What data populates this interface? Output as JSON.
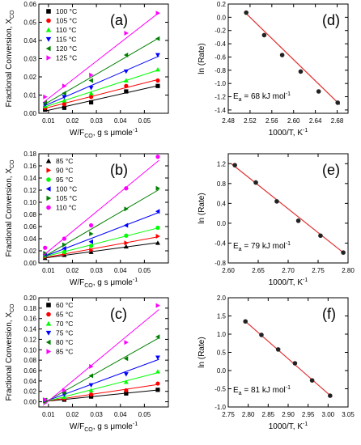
{
  "figure": {
    "colors": {
      "black": "#000000",
      "red": "#ff0000",
      "green": "#00ff00",
      "blue": "#0000ff",
      "darkgreen": "#007f00",
      "magenta": "#ff00ff",
      "fitline": "#e03030",
      "arrhenius_marker": "#222222"
    }
  },
  "chart_data": [
    {
      "id": "a",
      "type": "scatter",
      "panel_label": "(a)",
      "xlabel_main": "W/F",
      "xlabel_sub": "CO",
      "xlabel_tail": ", g s μmole",
      "xlabel_sup": "-1",
      "ylabel_main": "Fractional Conversion, X",
      "ylabel_sub": "CO",
      "xlim": [
        0.006,
        0.06
      ],
      "ylim": [
        0,
        0.06
      ],
      "xticks": [
        0.01,
        0.02,
        0.03,
        0.04,
        0.05
      ],
      "xtick_labels": [
        "0.01",
        "0.02",
        "0.03",
        "0.04",
        "0.05"
      ],
      "yticks": [
        0,
        0.01,
        0.02,
        0.03,
        0.04,
        0.05,
        0.06
      ],
      "ytick_labels": [
        "0.00",
        "0.01",
        "0.02",
        "0.03",
        "0.04",
        "0.05",
        "0.06"
      ],
      "legend_position": "top-left",
      "x": [
        0.0086,
        0.0166,
        0.0278,
        0.0424,
        0.0556
      ],
      "series": [
        {
          "name": "100 °C",
          "marker": "square",
          "color": "#000000",
          "values": [
            0.002,
            0.003,
            0.006,
            0.012,
            0.015
          ]
        },
        {
          "name": "105 °C",
          "marker": "circle",
          "color": "#ff0000",
          "values": [
            0.003,
            0.005,
            0.009,
            0.015,
            0.018
          ]
        },
        {
          "name": "110 °C",
          "marker": "triangle-up",
          "color": "#00ff00",
          "values": [
            0.004,
            0.007,
            0.011,
            0.018,
            0.024
          ]
        },
        {
          "name": "115 °C",
          "marker": "triangle-down",
          "color": "#0000ff",
          "values": [
            0.005,
            0.009,
            0.014,
            0.023,
            0.032
          ]
        },
        {
          "name": "120 °C",
          "marker": "triangle-left",
          "color": "#007f00",
          "values": [
            0.006,
            0.011,
            0.018,
            0.032,
            0.041
          ]
        },
        {
          "name": "125 °C",
          "marker": "triangle-right",
          "color": "#ff00ff",
          "values": [
            0.009,
            0.015,
            0.021,
            0.044,
            0.055
          ]
        }
      ]
    },
    {
      "id": "d",
      "type": "scatter",
      "panel_label": "(d)",
      "xlabel_main": "1000/T, K",
      "xlabel_sup": "-1",
      "ylabel_main": "ln (Rate)",
      "xlim": [
        2.48,
        2.7
      ],
      "ylim": [
        -1.45,
        0.2
      ],
      "xticks": [
        2.48,
        2.52,
        2.56,
        2.6,
        2.64,
        2.68
      ],
      "xtick_labels": [
        "2.48",
        "2.52",
        "2.56",
        "2.60",
        "2.64",
        "2.68"
      ],
      "yticks": [
        -1.4,
        -1.2,
        -1.0,
        -0.8,
        -0.6,
        -0.4,
        -0.2,
        0.0,
        0.2
      ],
      "ytick_labels": [
        "-1.4",
        "-1.2",
        "-1.0",
        "-0.8",
        "-0.6",
        "-0.4",
        "-0.2",
        "0.0",
        "0.2"
      ],
      "annotation": {
        "main": "E",
        "sub": "a",
        "tail": " = 68 kJ mol",
        "sup": "-1"
      },
      "points_x": [
        2.513,
        2.546,
        2.579,
        2.613,
        2.646,
        2.681
      ],
      "points_y": [
        0.07,
        -0.27,
        -0.57,
        -0.82,
        -1.12,
        -1.29
      ],
      "fit": {
        "x": [
          2.51,
          2.685
        ],
        "y": [
          0.08,
          -1.32
        ]
      }
    },
    {
      "id": "b",
      "type": "scatter",
      "panel_label": "(b)",
      "xlabel_main": "W/F",
      "xlabel_sub": "CO",
      "xlabel_tail": ", g s μmole",
      "xlabel_sup": "-1",
      "ylabel_main": "Fractional Conversion, X",
      "ylabel_sub": "CO",
      "xlim": [
        0.006,
        0.06
      ],
      "ylim": [
        0,
        0.18
      ],
      "xticks": [
        0.01,
        0.02,
        0.03,
        0.04,
        0.05
      ],
      "xtick_labels": [
        "0.01",
        "0.02",
        "0.03",
        "0.04",
        "0.05"
      ],
      "yticks": [
        0,
        0.02,
        0.04,
        0.06,
        0.08,
        0.1,
        0.12,
        0.14,
        0.16,
        0.18
      ],
      "ytick_labels": [
        "0.00",
        "0.02",
        "0.04",
        "0.06",
        "0.08",
        "0.10",
        "0.12",
        "0.14",
        "0.16",
        "0.18"
      ],
      "legend_position": "top-left",
      "x": [
        0.0086,
        0.0166,
        0.0278,
        0.0424,
        0.0556
      ],
      "series": [
        {
          "name": "85 °C",
          "marker": "triangle-up",
          "color": "#000000",
          "values": [
            0.008,
            0.013,
            0.018,
            0.027,
            0.033
          ]
        },
        {
          "name": "90 °C",
          "marker": "triangle-right",
          "color": "#ff0000",
          "values": [
            0.01,
            0.015,
            0.021,
            0.033,
            0.044
          ]
        },
        {
          "name": "95 °C",
          "marker": "circle",
          "color": "#00ff00",
          "values": [
            0.012,
            0.018,
            0.028,
            0.045,
            0.058
          ]
        },
        {
          "name": "100 °C",
          "marker": "triangle-left",
          "color": "#0000ff",
          "values": [
            0.014,
            0.024,
            0.035,
            0.062,
            0.085
          ]
        },
        {
          "name": "105 °C",
          "marker": "triangle-right",
          "color": "#007f00",
          "values": [
            0.016,
            0.03,
            0.048,
            0.089,
            0.123
          ]
        },
        {
          "name": "110 °C",
          "marker": "circle",
          "color": "#ff00ff",
          "values": [
            0.025,
            0.04,
            0.062,
            0.123,
            0.175
          ]
        }
      ]
    },
    {
      "id": "e",
      "type": "scatter",
      "panel_label": "(e)",
      "xlabel_main": "1000/T, K",
      "xlabel_sup": "-1",
      "ylabel_main": "ln (Rate)",
      "xlim": [
        2.6,
        2.8
      ],
      "ylim": [
        -0.8,
        1.4
      ],
      "xticks": [
        2.6,
        2.65,
        2.7,
        2.75,
        2.8
      ],
      "xtick_labels": [
        "2.60",
        "2.65",
        "2.70",
        "2.75",
        "2.80"
      ],
      "yticks": [
        -0.8,
        -0.4,
        0.0,
        0.4,
        0.8,
        1.2
      ],
      "ytick_labels": [
        "-0.8",
        "-0.4",
        "0.0",
        "0.4",
        "0.8",
        "1.2"
      ],
      "annotation": {
        "main": "E",
        "sub": "a",
        "tail": " = 79 kJ mol",
        "sup": "-1"
      },
      "points_x": [
        2.611,
        2.646,
        2.681,
        2.717,
        2.754,
        2.792
      ],
      "points_y": [
        1.17,
        0.82,
        0.44,
        0.05,
        -0.25,
        -0.59
      ],
      "fit": {
        "x": [
          2.605,
          2.795
        ],
        "y": [
          1.2,
          -0.62
        ]
      }
    },
    {
      "id": "c",
      "type": "scatter",
      "panel_label": "(c)",
      "xlabel_main": "W/F",
      "xlabel_sub": "CO",
      "xlabel_tail": ", g s μmole",
      "xlabel_sup": "-1",
      "ylabel_main": "Fractional Conversion, X",
      "ylabel_sub": "CO",
      "xlim": [
        0.006,
        0.06
      ],
      "ylim": [
        -0.01,
        0.2
      ],
      "xticks": [
        0.01,
        0.02,
        0.03,
        0.04,
        0.05
      ],
      "xtick_labels": [
        "0.01",
        "0.02",
        "0.03",
        "0.04",
        "0.05"
      ],
      "yticks": [
        0,
        0.02,
        0.04,
        0.06,
        0.08,
        0.1,
        0.12,
        0.14,
        0.16,
        0.18,
        0.2
      ],
      "ytick_labels": [
        "0.00",
        "0.02",
        "0.04",
        "0.06",
        "0.08",
        "0.10",
        "0.12",
        "0.14",
        "0.16",
        "0.18",
        "0.20"
      ],
      "legend_position": "top-left",
      "x": [
        0.0086,
        0.0166,
        0.0278,
        0.0424,
        0.0556
      ],
      "series": [
        {
          "name": "60 °C",
          "marker": "square",
          "color": "#000000",
          "values": [
            0.001,
            0.004,
            0.01,
            0.016,
            0.023
          ]
        },
        {
          "name": "65 °C",
          "marker": "circle",
          "color": "#ff0000",
          "values": [
            0.002,
            0.006,
            0.014,
            0.022,
            0.035
          ]
        },
        {
          "name": "70 °C",
          "marker": "triangle-up",
          "color": "#00ff00",
          "values": [
            0.002,
            0.009,
            0.022,
            0.038,
            0.058
          ]
        },
        {
          "name": "75 °C",
          "marker": "triangle-down",
          "color": "#0000ff",
          "values": [
            0.003,
            0.014,
            0.032,
            0.053,
            0.085
          ]
        },
        {
          "name": "80 °C",
          "marker": "triangle-left",
          "color": "#007f00",
          "values": [
            0.003,
            0.017,
            0.05,
            0.083,
            0.125
          ]
        },
        {
          "name": "85 °C",
          "marker": "triangle-right",
          "color": "#ff00ff",
          "values": [
            0.004,
            0.022,
            0.068,
            0.114,
            0.185
          ]
        }
      ]
    },
    {
      "id": "f",
      "type": "scatter",
      "panel_label": "(f)",
      "xlabel_main": "1000/T, K",
      "xlabel_sup": "-1",
      "ylabel_main": "ln (Rate)",
      "xlim": [
        2.75,
        3.05
      ],
      "ylim": [
        -1.0,
        2.0
      ],
      "xticks": [
        2.75,
        2.8,
        2.85,
        2.9,
        2.95,
        3.0,
        3.05
      ],
      "xtick_labels": [
        "2.75",
        "2.80",
        "2.85",
        "2.90",
        "2.95",
        "3.00",
        "3.05"
      ],
      "yticks": [
        -1.0,
        -0.5,
        0.0,
        0.5,
        1.0,
        1.5,
        2.0
      ],
      "ytick_labels": [
        "-1.0",
        "-0.5",
        "0.0",
        "0.5",
        "1.0",
        "1.5",
        "2.0"
      ],
      "annotation": {
        "main": "E",
        "sub": "a",
        "tail": " = 81 kJ mol",
        "sup": "-1"
      },
      "points_x": [
        2.793,
        2.833,
        2.875,
        2.917,
        2.96,
        3.005
      ],
      "points_y": [
        1.35,
        0.98,
        0.58,
        0.2,
        -0.27,
        -0.69
      ],
      "fit": {
        "x": [
          2.79,
          3.01
        ],
        "y": [
          1.38,
          -0.73
        ]
      }
    }
  ]
}
